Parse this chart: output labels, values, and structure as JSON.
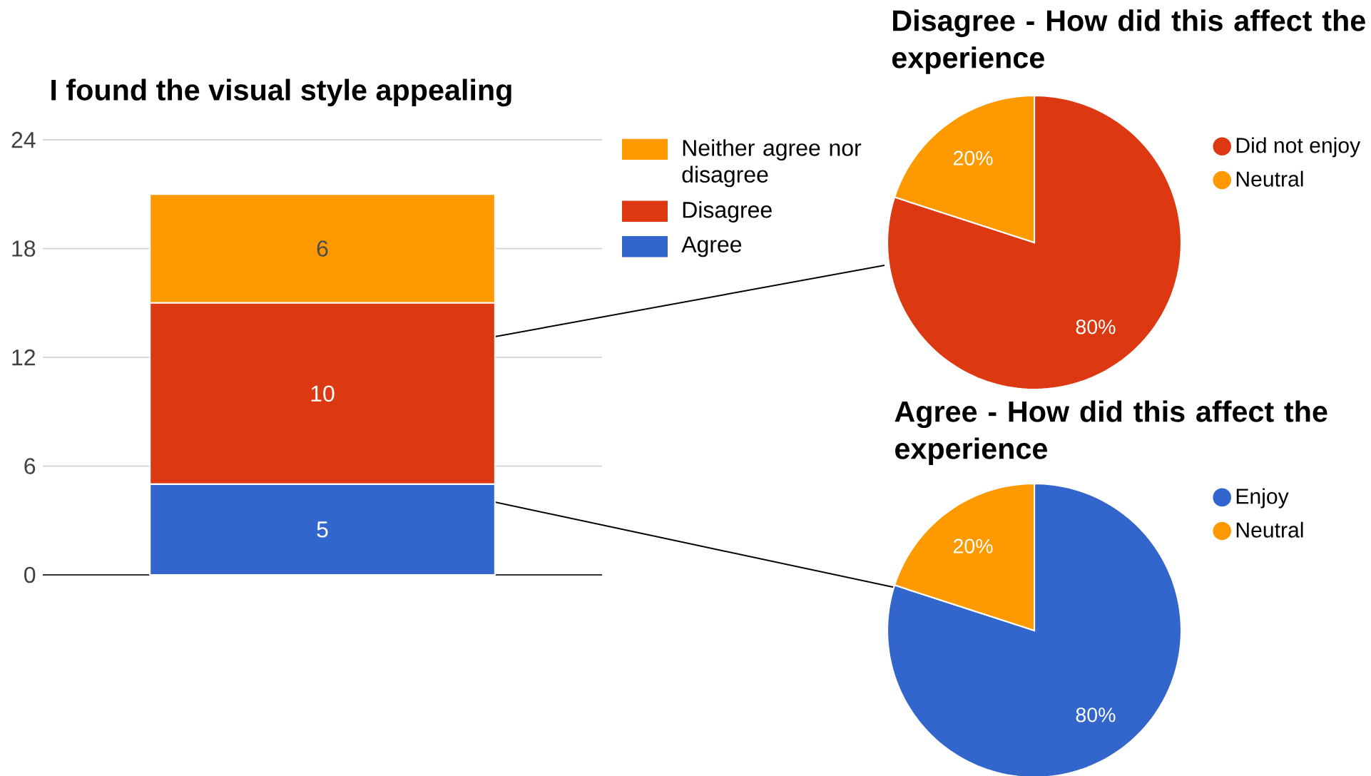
{
  "chart_data": [
    {
      "type": "bar",
      "title": "I found the visual style appealing",
      "categories": [
        null
      ],
      "stacked": true,
      "series": [
        {
          "name": "Agree",
          "color": "#3366cc",
          "values": [
            5
          ]
        },
        {
          "name": "Disagree",
          "color": "#dc3912",
          "values": [
            10
          ]
        },
        {
          "name": "Neither agree nor disagree",
          "color": "#ff9900",
          "values": [
            6
          ]
        }
      ],
      "ylim": [
        0,
        24
      ],
      "yticks": [
        0,
        6,
        12,
        18,
        24
      ],
      "grid": "y",
      "legend": "top right",
      "data_labels": true
    },
    {
      "type": "pie",
      "title": "Disagree - How did this affect the experience",
      "categories": [
        "Did not enjoy",
        "Neutral"
      ],
      "values": [
        80,
        20
      ],
      "colors": [
        "#dc3912",
        "#ff9900"
      ],
      "value_labels": [
        "80%",
        "20%"
      ],
      "legend": "top right"
    },
    {
      "type": "pie",
      "title": "Agree - How did this affect the experience",
      "categories": [
        "Enjoy",
        "Neutral"
      ],
      "values": [
        80,
        20
      ],
      "colors": [
        "#3366cc",
        "#ff9900"
      ],
      "value_labels": [
        "80%",
        "20%"
      ],
      "legend": "top right"
    }
  ]
}
